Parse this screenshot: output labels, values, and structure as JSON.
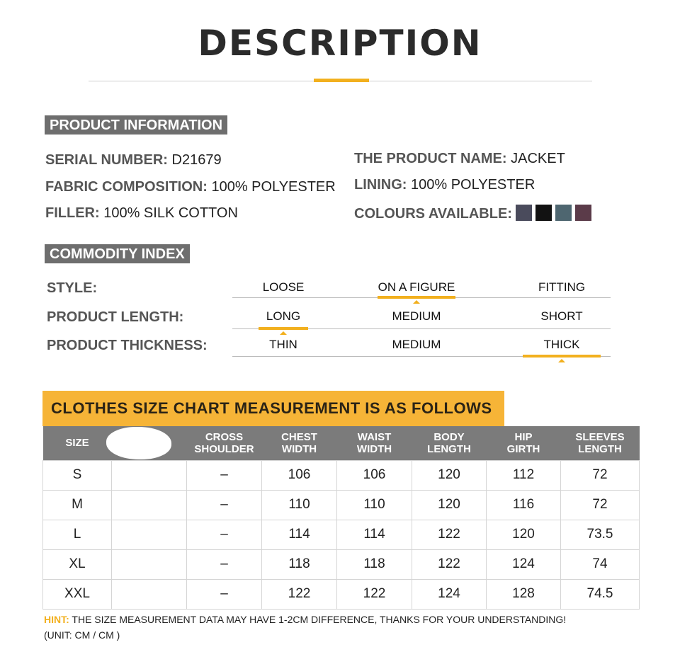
{
  "title": "DESCRIPTION",
  "product_info": {
    "heading": "PRODUCT INFORMATION",
    "serial_label": "SERIAL NUMBER:",
    "serial": "D21679",
    "name_label": "THE PRODUCT NAME:",
    "name": "JACKET",
    "fabric_label": "FABRIC COMPOSITION:",
    "fabric": "100% POLYESTER",
    "lining_label": "LINING:",
    "lining": "100% POLYESTER",
    "filler_label": "FILLER:",
    "filler": "100% SILK COTTON",
    "colours_label": "COLOURS AVAILABLE:",
    "colours": [
      "#4a4b5c",
      "#121212",
      "#4e6670",
      "#5b3b49"
    ]
  },
  "commodity": {
    "heading": "COMMODITY INDEX",
    "rows": [
      {
        "label": "STYLE:",
        "options": [
          "LOOSE",
          "ON A FIGURE",
          "FITTING"
        ],
        "selected": 1
      },
      {
        "label": "PRODUCT LENGTH:",
        "options": [
          "LONG",
          "MEDIUM",
          "SHORT"
        ],
        "selected": 0
      },
      {
        "label": "PRODUCT THICKNESS:",
        "options": [
          "THIN",
          "MEDIUM",
          "THICK"
        ],
        "selected": 2
      }
    ]
  },
  "size_chart": {
    "heading": "CLOTHES SIZE CHART MEASUREMENT IS AS FOLLOWS",
    "headers": [
      "SIZE",
      "",
      "CROSS\nSHOULDER",
      "CHEST\nWIDTH",
      "WAIST\nWIDTH",
      "BODY\nLENGTH",
      "HIP\nGIRTH",
      "SLEEVES\nLENGTH"
    ],
    "rows": [
      [
        "S",
        "",
        "–",
        "106",
        "106",
        "120",
        "112",
        "72"
      ],
      [
        "M",
        "",
        "–",
        "110",
        "110",
        "120",
        "116",
        "72"
      ],
      [
        "L",
        "",
        "–",
        "114",
        "114",
        "122",
        "120",
        "73.5"
      ],
      [
        "XL",
        "",
        "–",
        "118",
        "118",
        "122",
        "124",
        "74"
      ],
      [
        "XXL",
        "",
        "–",
        "122",
        "122",
        "124",
        "128",
        "74.5"
      ]
    ]
  },
  "hint_label": "HINT:",
  "hint": "THE SIZE MEASUREMENT DATA MAY HAVE 1-2CM DIFFERENCE, THANKS FOR YOUR UNDERSTANDING!",
  "unit": "(UNIT: CM / CM )",
  "accent_color": "#f2b01e"
}
